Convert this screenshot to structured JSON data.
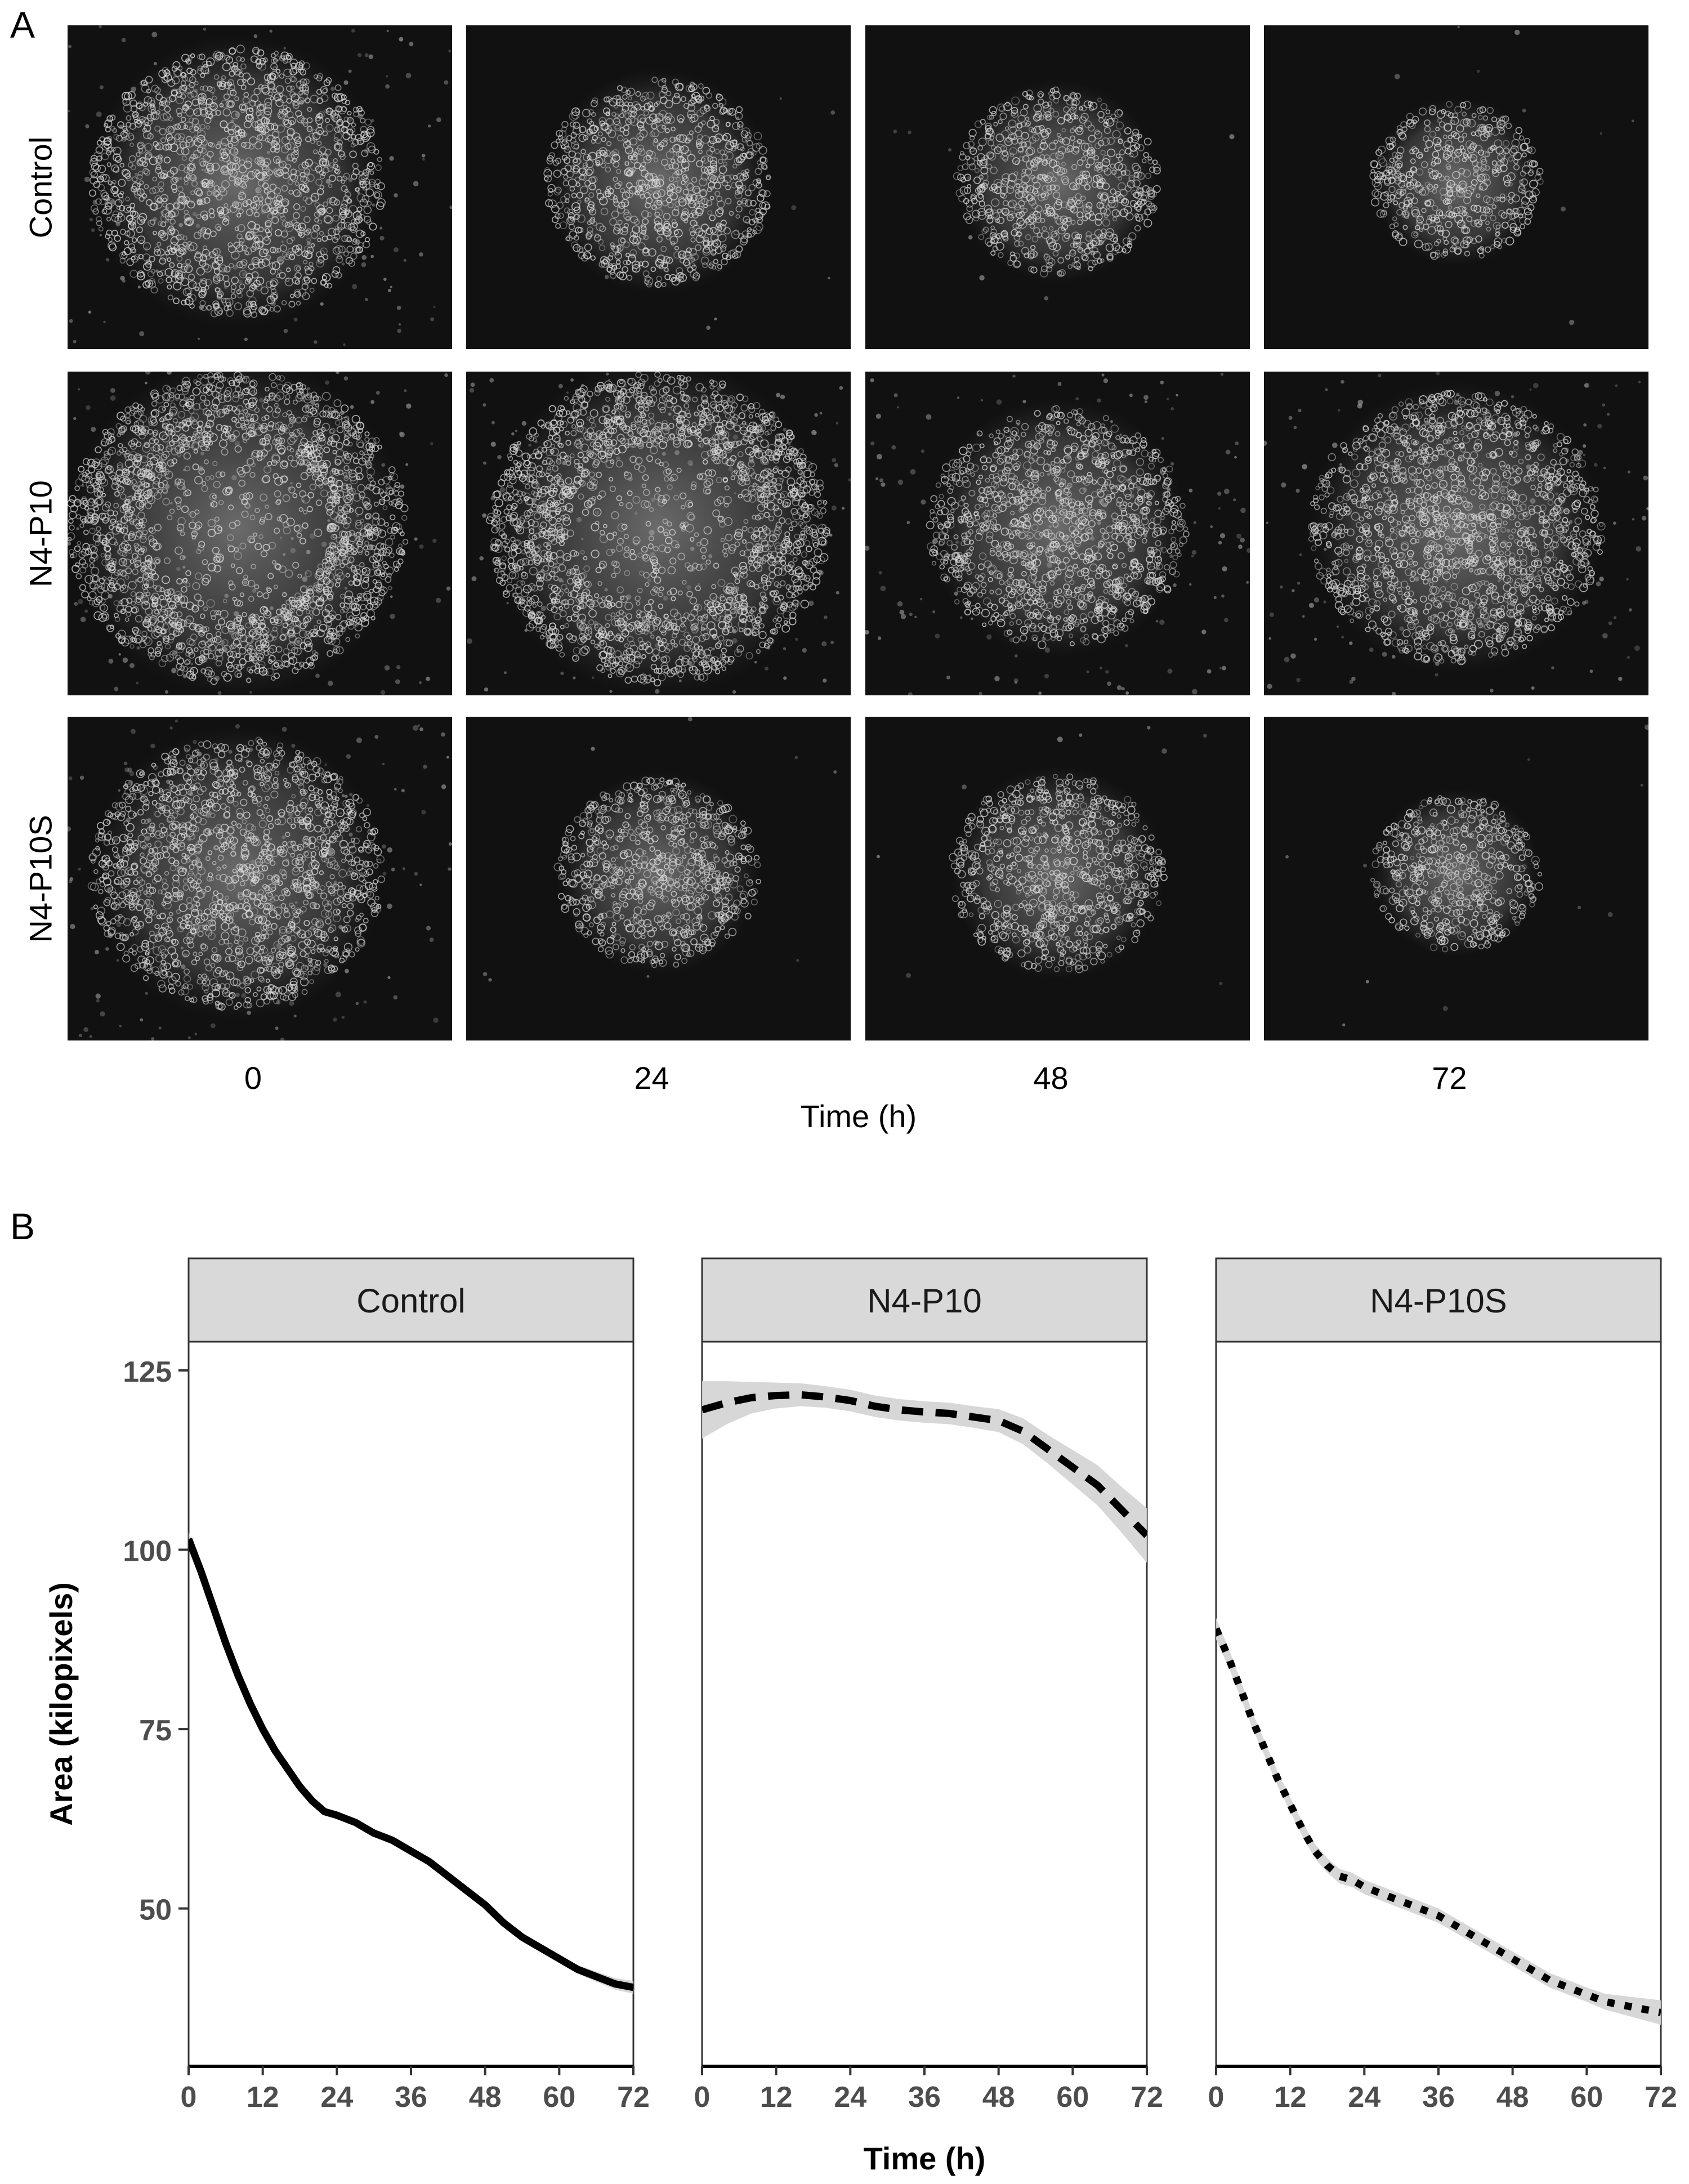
{
  "panel_a": {
    "letter": "A",
    "rows": [
      "Control",
      "N4-P10",
      "N4-P10S"
    ],
    "columns": [
      "0",
      "24",
      "48",
      "72"
    ],
    "xlabel": "Time (h)",
    "background_color": "#111111",
    "cell_color": "#d9d9d9"
  },
  "panel_b": {
    "letter": "B"
  },
  "chart_data": {
    "type": "line",
    "facets": [
      "Control",
      "N4-P10",
      "N4-P10S"
    ],
    "xlabel": "Time (h)",
    "ylabel": "Area (kilopixels)",
    "xlim": [
      0,
      72
    ],
    "ylim": [
      28,
      129
    ],
    "xticks": [
      0,
      12,
      24,
      36,
      48,
      60,
      72
    ],
    "yticks": [
      50,
      75,
      100,
      125
    ],
    "grid": false,
    "strip_color": "#d9d9d9",
    "ribbon_color": "#d3d3d3",
    "line_color": "#000000",
    "series": [
      {
        "facet": "Control",
        "line_style": "solid",
        "x": [
          0,
          2,
          4,
          6,
          8,
          10,
          12,
          14,
          16,
          18,
          20,
          22,
          24,
          27,
          30,
          33,
          36,
          39,
          42,
          45,
          48,
          51,
          54,
          57,
          60,
          63,
          66,
          69,
          72
        ],
        "y": [
          101.5,
          97,
          92,
          87,
          82.5,
          78.5,
          75,
          72,
          69.5,
          67,
          65,
          63.5,
          63,
          62,
          60.5,
          59.5,
          58,
          56.5,
          54.5,
          52.5,
          50.5,
          48,
          46,
          44.5,
          43,
          41.5,
          40.5,
          39.5,
          39
        ],
        "ci_halfwidth": [
          1.0,
          0.9,
          0.8,
          0.7,
          0.6,
          0.5,
          0.5,
          0.5,
          0.5,
          0.5,
          0.5,
          0.5,
          0.5,
          0.5,
          0.5,
          0.5,
          0.5,
          0.5,
          0.5,
          0.5,
          0.5,
          0.5,
          0.5,
          0.5,
          0.5,
          0.6,
          0.7,
          0.8,
          0.9
        ]
      },
      {
        "facet": "N4-P10",
        "line_style": "dashed",
        "x": [
          0,
          4,
          8,
          12,
          16,
          20,
          24,
          28,
          32,
          36,
          40,
          44,
          48,
          52,
          56,
          60,
          64,
          68,
          72
        ],
        "y": [
          119.5,
          120.5,
          121.2,
          121.5,
          121.6,
          121.3,
          120.8,
          120,
          119.5,
          119.2,
          119,
          118.5,
          118,
          116.5,
          114,
          111.5,
          109,
          105.5,
          102
        ],
        "ci_halfwidth": [
          4,
          3,
          2.2,
          1.8,
          1.6,
          1.5,
          1.5,
          1.5,
          1.5,
          1.5,
          1.5,
          1.5,
          1.6,
          1.8,
          2.0,
          2.4,
          2.8,
          3.2,
          3.8
        ]
      },
      {
        "facet": "N4-P10S",
        "line_style": "dotted",
        "x": [
          0,
          2,
          4,
          6,
          8,
          10,
          12,
          14,
          16,
          18,
          20,
          22,
          24,
          27,
          30,
          33,
          36,
          39,
          42,
          45,
          48,
          51,
          54,
          57,
          60,
          63,
          66,
          69,
          72
        ],
        "y": [
          89,
          85,
          80.5,
          76,
          72,
          68,
          64.5,
          61,
          58,
          56,
          54.5,
          54,
          53,
          52,
          51,
          50,
          49,
          47.5,
          46,
          44.5,
          43,
          41.5,
          40,
          39,
          38,
          37,
          36.5,
          36,
          35.5
        ],
        "ci_halfwidth": [
          1.5,
          1.3,
          1.2,
          1.1,
          1.0,
          1.0,
          1.0,
          1.0,
          1.0,
          1.0,
          1.0,
          1.0,
          1.0,
          1.0,
          1.0,
          1.0,
          1.0,
          1.0,
          1.0,
          1.0,
          1.0,
          1.0,
          1.0,
          1.0,
          1.0,
          1.1,
          1.3,
          1.5,
          1.7
        ]
      }
    ]
  }
}
